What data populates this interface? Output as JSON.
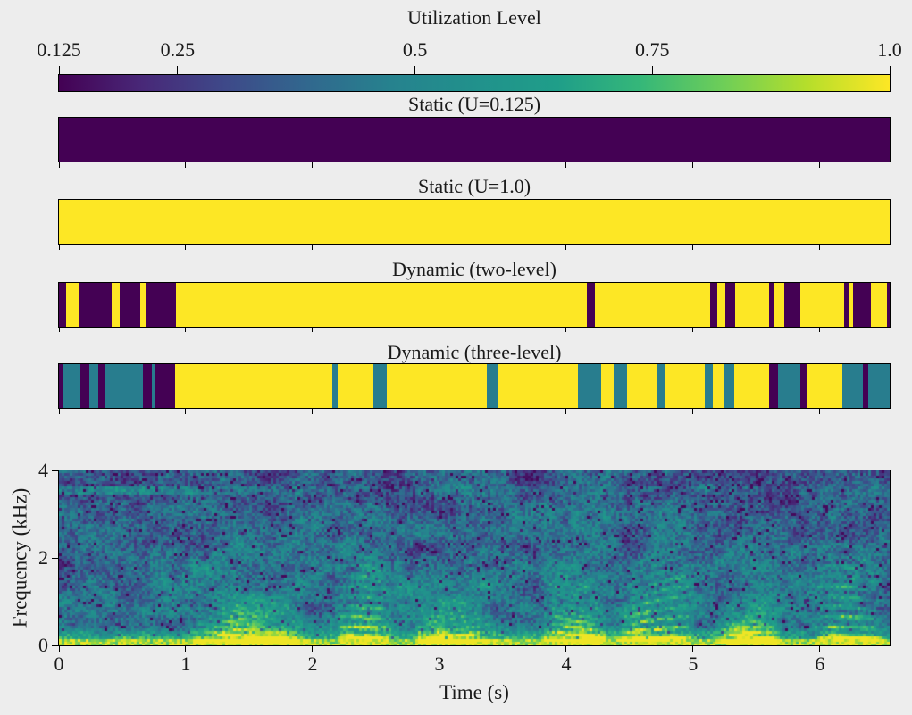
{
  "figure": {
    "background_color": "#ededed",
    "text_color": "#1a1a1a"
  },
  "chart_data": {
    "type": "heatmap",
    "colormap": "viridis",
    "duration_s": 6.55,
    "utilization_levels": [
      0.125,
      0.5,
      1.0
    ],
    "level_colors": {
      "0.125": "#440154",
      "0.5": "#287d8e",
      "1": "#fde725"
    },
    "colorbar": {
      "title": "Utilization Level",
      "orientation": "horizontal",
      "tick_position": "top",
      "range": [
        0.125,
        1.0
      ],
      "tick_values": [
        0.125,
        0.25,
        0.5,
        0.75,
        1.0
      ],
      "tick_labels": [
        "0.125",
        "0.25",
        "0.5",
        "0.75",
        "1.0"
      ]
    },
    "panels": [
      {
        "title": "Static (U=0.125)",
        "segments": [
          {
            "start": 0,
            "end": 1,
            "u": 0.125
          }
        ]
      },
      {
        "title": "Static (U=1.0)",
        "segments": [
          {
            "start": 0,
            "end": 1,
            "u": 1
          }
        ]
      },
      {
        "title": "Dynamic (two-level)",
        "segments": [
          {
            "start": 0.0,
            "end": 0.009,
            "u": 0.125
          },
          {
            "start": 0.009,
            "end": 0.024,
            "u": 1
          },
          {
            "start": 0.024,
            "end": 0.063,
            "u": 0.125
          },
          {
            "start": 0.063,
            "end": 0.073,
            "u": 1
          },
          {
            "start": 0.073,
            "end": 0.098,
            "u": 0.125
          },
          {
            "start": 0.098,
            "end": 0.104,
            "u": 1
          },
          {
            "start": 0.104,
            "end": 0.141,
            "u": 0.125
          },
          {
            "start": 0.141,
            "end": 0.635,
            "u": 1
          },
          {
            "start": 0.635,
            "end": 0.645,
            "u": 0.125
          },
          {
            "start": 0.645,
            "end": 0.784,
            "u": 1
          },
          {
            "start": 0.784,
            "end": 0.793,
            "u": 0.125
          },
          {
            "start": 0.793,
            "end": 0.802,
            "u": 1
          },
          {
            "start": 0.802,
            "end": 0.814,
            "u": 0.125
          },
          {
            "start": 0.814,
            "end": 0.855,
            "u": 1
          },
          {
            "start": 0.855,
            "end": 0.86,
            "u": 0.125
          },
          {
            "start": 0.86,
            "end": 0.873,
            "u": 1
          },
          {
            "start": 0.873,
            "end": 0.893,
            "u": 0.125
          },
          {
            "start": 0.893,
            "end": 0.945,
            "u": 1
          },
          {
            "start": 0.945,
            "end": 0.951,
            "u": 0.125
          },
          {
            "start": 0.951,
            "end": 0.956,
            "u": 1
          },
          {
            "start": 0.956,
            "end": 0.977,
            "u": 0.125
          },
          {
            "start": 0.977,
            "end": 0.997,
            "u": 1
          },
          {
            "start": 0.997,
            "end": 1.0,
            "u": 0.125
          }
        ]
      },
      {
        "title": "Dynamic (three-level)",
        "segments": [
          {
            "start": 0.0,
            "end": 0.004,
            "u": 0.125
          },
          {
            "start": 0.004,
            "end": 0.026,
            "u": 0.5
          },
          {
            "start": 0.026,
            "end": 0.037,
            "u": 0.125
          },
          {
            "start": 0.037,
            "end": 0.047,
            "u": 0.5
          },
          {
            "start": 0.047,
            "end": 0.055,
            "u": 0.125
          },
          {
            "start": 0.055,
            "end": 0.101,
            "u": 0.5
          },
          {
            "start": 0.101,
            "end": 0.112,
            "u": 0.125
          },
          {
            "start": 0.112,
            "end": 0.116,
            "u": 0.5
          },
          {
            "start": 0.116,
            "end": 0.14,
            "u": 0.125
          },
          {
            "start": 0.14,
            "end": 0.329,
            "u": 1
          },
          {
            "start": 0.329,
            "end": 0.336,
            "u": 0.5
          },
          {
            "start": 0.336,
            "end": 0.378,
            "u": 1
          },
          {
            "start": 0.378,
            "end": 0.395,
            "u": 0.5
          },
          {
            "start": 0.395,
            "end": 0.515,
            "u": 1
          },
          {
            "start": 0.515,
            "end": 0.529,
            "u": 0.5
          },
          {
            "start": 0.529,
            "end": 0.625,
            "u": 1
          },
          {
            "start": 0.625,
            "end": 0.653,
            "u": 0.5
          },
          {
            "start": 0.653,
            "end": 0.668,
            "u": 1
          },
          {
            "start": 0.668,
            "end": 0.684,
            "u": 0.5
          },
          {
            "start": 0.684,
            "end": 0.719,
            "u": 1
          },
          {
            "start": 0.719,
            "end": 0.73,
            "u": 0.5
          },
          {
            "start": 0.73,
            "end": 0.777,
            "u": 1
          },
          {
            "start": 0.777,
            "end": 0.787,
            "u": 0.5
          },
          {
            "start": 0.787,
            "end": 0.8,
            "u": 1
          },
          {
            "start": 0.8,
            "end": 0.813,
            "u": 0.5
          },
          {
            "start": 0.813,
            "end": 0.855,
            "u": 1
          },
          {
            "start": 0.855,
            "end": 0.866,
            "u": 0.125
          },
          {
            "start": 0.866,
            "end": 0.893,
            "u": 0.5
          },
          {
            "start": 0.893,
            "end": 0.9,
            "u": 0.125
          },
          {
            "start": 0.9,
            "end": 0.943,
            "u": 1
          },
          {
            "start": 0.943,
            "end": 0.968,
            "u": 0.5
          },
          {
            "start": 0.968,
            "end": 0.974,
            "u": 0.125
          },
          {
            "start": 0.974,
            "end": 1.0,
            "u": 0.5
          }
        ]
      }
    ],
    "spectrogram": {
      "xlabel": "Time (s)",
      "ylabel": "Frequency (kHz)",
      "x_range_s": [
        0,
        6.55
      ],
      "y_range_khz": [
        0,
        4
      ],
      "xtick_values": [
        0,
        1,
        2,
        3,
        4,
        5,
        6
      ],
      "xtick_labels": [
        "0",
        "1",
        "2",
        "3",
        "4",
        "5",
        "6"
      ],
      "ytick_values": [
        0,
        2,
        4
      ],
      "ytick_labels": [
        "0",
        "2",
        "4"
      ],
      "description": "Speech spectrogram, viridis colormap, bright low-frequency band with harmonic striations"
    }
  }
}
